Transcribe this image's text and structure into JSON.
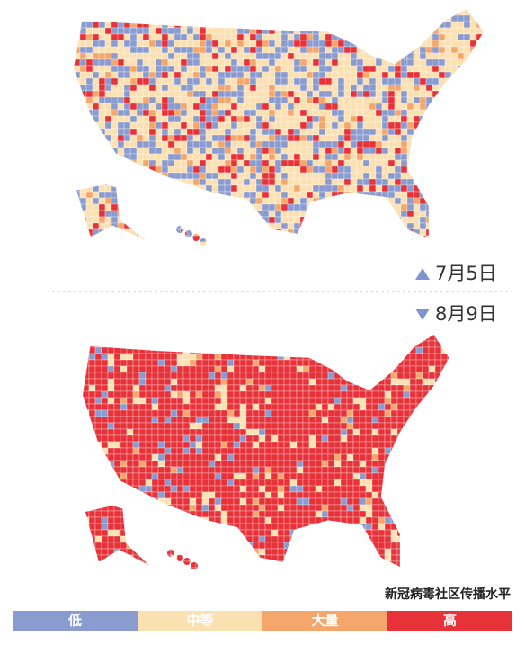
{
  "maps": [
    {
      "date": "7月5日"
    },
    {
      "date": "8月9日"
    }
  ],
  "legend": {
    "title": "新冠病毒社区传播水平",
    "items": [
      {
        "label": "低",
        "color": "#8a9bd0"
      },
      {
        "label": "中等",
        "color": "#fbe0b2"
      },
      {
        "label": "大量",
        "color": "#f5a66a"
      },
      {
        "label": "高",
        "color": "#e8323a"
      }
    ]
  }
}
